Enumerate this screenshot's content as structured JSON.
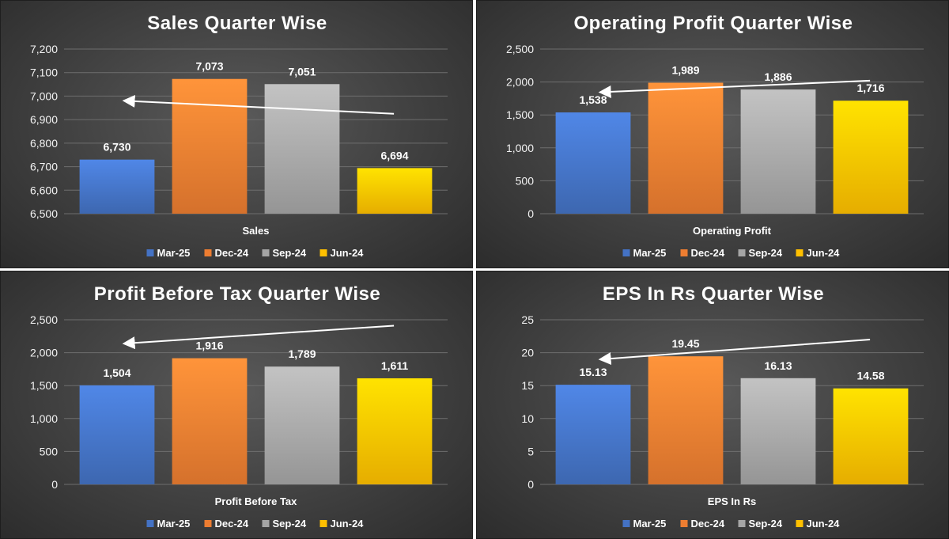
{
  "colors": {
    "Mar-25": "#4472c4",
    "Dec-24": "#ed7d31",
    "Sep-24": "#a5a5a5",
    "Jun-24": "#ffc000",
    "grid": "#6e6e6e",
    "arrow": "#ffffff"
  },
  "chart_data": [
    {
      "type": "bar",
      "title": "Sales Quarter Wise",
      "category_label": "Sales",
      "series": [
        {
          "name": "Mar-25",
          "values": [
            6730
          ],
          "labels": [
            "6,730"
          ]
        },
        {
          "name": "Dec-24",
          "values": [
            7073
          ],
          "labels": [
            "7,073"
          ]
        },
        {
          "name": "Sep-24",
          "values": [
            7051
          ],
          "labels": [
            "7,051"
          ]
        },
        {
          "name": "Jun-24",
          "values": [
            6694
          ],
          "labels": [
            "6,694"
          ]
        }
      ],
      "ylim": [
        6500,
        7200
      ],
      "yticks": [
        "6,500",
        "6,600",
        "6,700",
        "6,800",
        "6,900",
        "7,000",
        "7,100",
        "7,200"
      ],
      "legend": "bottom",
      "grid": true,
      "annotation": "arrow",
      "arrow": {
        "from": 6925,
        "to": 6980
      }
    },
    {
      "type": "bar",
      "title": "Operating Profit Quarter Wise",
      "category_label": "Operating Profit",
      "series": [
        {
          "name": "Mar-25",
          "values": [
            1538
          ],
          "labels": [
            "1,538"
          ]
        },
        {
          "name": "Dec-24",
          "values": [
            1989
          ],
          "labels": [
            "1,989"
          ]
        },
        {
          "name": "Sep-24",
          "values": [
            1886
          ],
          "labels": [
            "1,886"
          ]
        },
        {
          "name": "Jun-24",
          "values": [
            1716
          ],
          "labels": [
            "1,716"
          ]
        }
      ],
      "ylim": [
        0,
        2500
      ],
      "yticks": [
        "0",
        "500",
        "1,000",
        "1,500",
        "2,000",
        "2,500"
      ],
      "legend": "bottom",
      "grid": true,
      "annotation": "arrow",
      "arrow": {
        "from": 2020,
        "to": 1845
      }
    },
    {
      "type": "bar",
      "title": "Profit Before Tax Quarter Wise",
      "category_label": "Profit Before Tax",
      "series": [
        {
          "name": "Mar-25",
          "values": [
            1504
          ],
          "labels": [
            "1,504"
          ]
        },
        {
          "name": "Dec-24",
          "values": [
            1916
          ],
          "labels": [
            "1,916"
          ]
        },
        {
          "name": "Sep-24",
          "values": [
            1789
          ],
          "labels": [
            "1,789"
          ]
        },
        {
          "name": "Jun-24",
          "values": [
            1611
          ],
          "labels": [
            "1,611"
          ]
        }
      ],
      "ylim": [
        0,
        2500
      ],
      "yticks": [
        "0",
        "500",
        "1,000",
        "1,500",
        "2,000",
        "2,500"
      ],
      "legend": "bottom",
      "grid": true,
      "annotation": "arrow",
      "arrow": {
        "from": 2410,
        "to": 2140
      }
    },
    {
      "type": "bar",
      "title": "EPS In Rs Quarter Wise",
      "category_label": "EPS In Rs",
      "series": [
        {
          "name": "Mar-25",
          "values": [
            15.13
          ],
          "labels": [
            "15.13"
          ]
        },
        {
          "name": "Dec-24",
          "values": [
            19.45
          ],
          "labels": [
            "19.45"
          ]
        },
        {
          "name": "Sep-24",
          "values": [
            16.13
          ],
          "labels": [
            "16.13"
          ]
        },
        {
          "name": "Jun-24",
          "values": [
            14.58
          ],
          "labels": [
            "14.58"
          ]
        }
      ],
      "ylim": [
        0,
        25
      ],
      "yticks": [
        "0",
        "5",
        "10",
        "15",
        "20",
        "25"
      ],
      "legend": "bottom",
      "grid": true,
      "annotation": "arrow",
      "arrow": {
        "from": 22,
        "to": 19
      }
    }
  ]
}
